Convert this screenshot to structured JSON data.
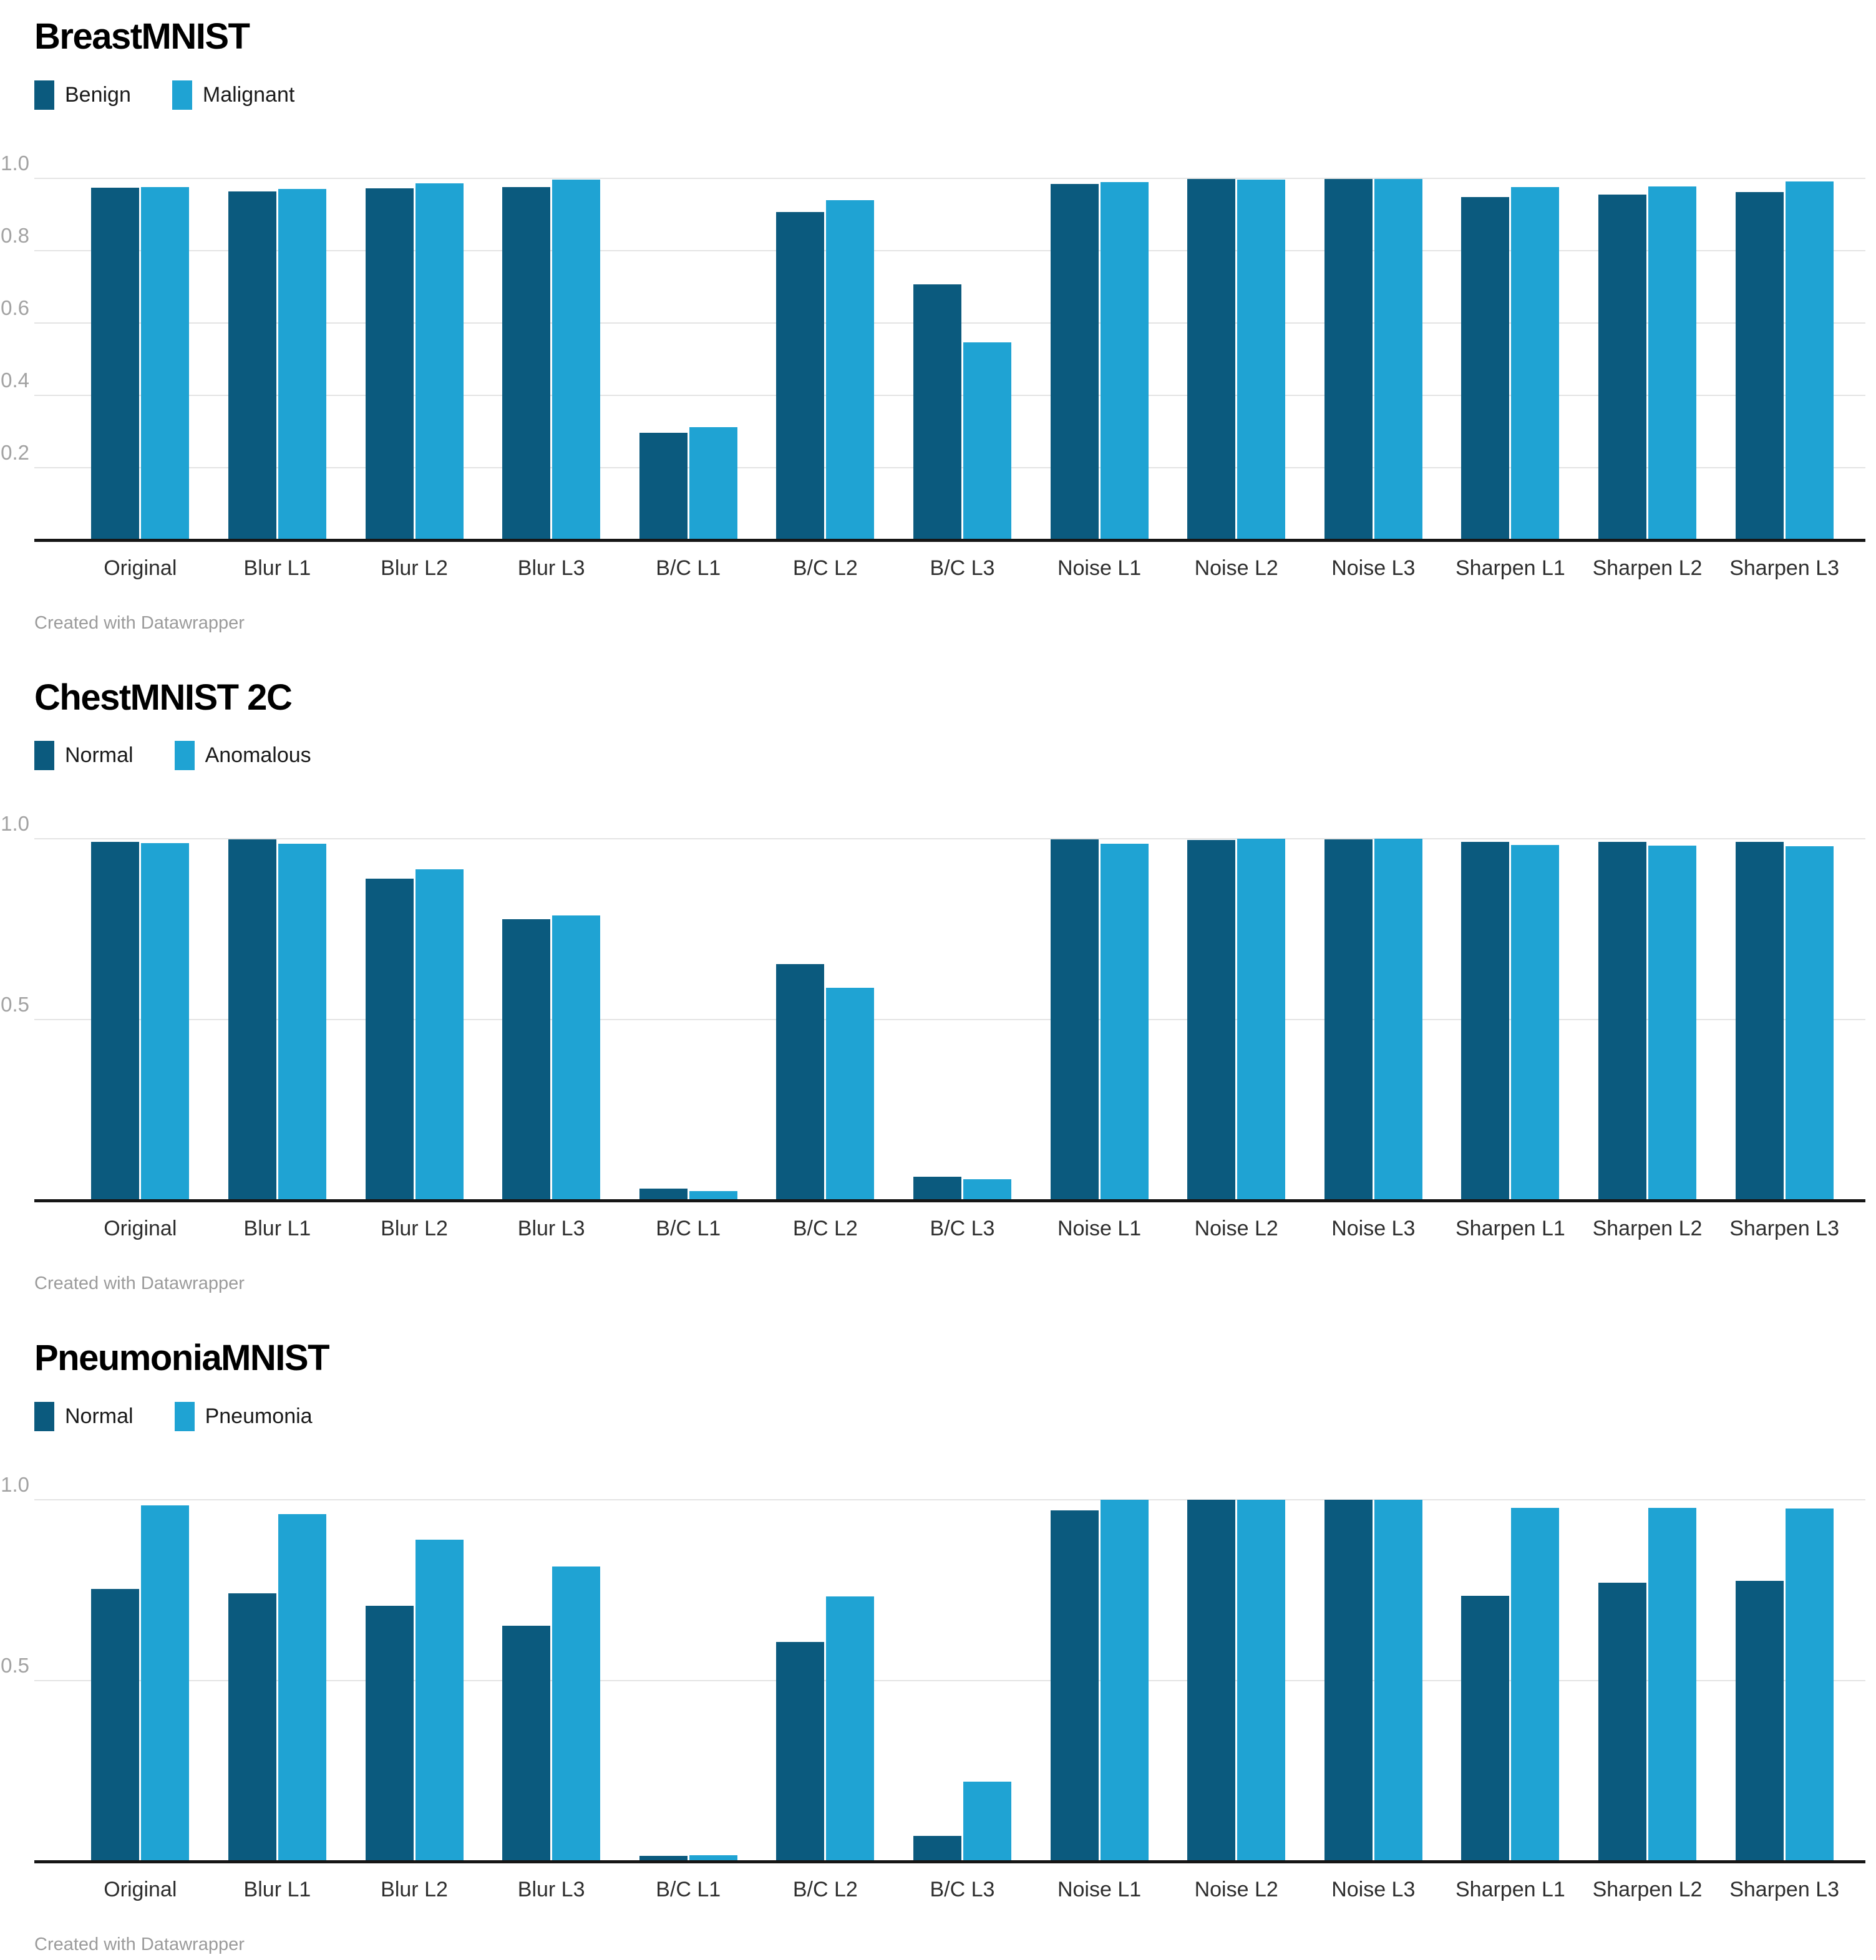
{
  "page": {
    "background": "#ffffff"
  },
  "style_colors": {
    "series_dark": "#0b5a7e",
    "series_light": "#1fa3d3",
    "gridline": "#e4e4e4",
    "baseline": "#161616",
    "tick_label": "#a2a2a2",
    "category_label": "#2e2e2e",
    "legend_label": "#1a1a1a",
    "credit_text": "#9b9b9b"
  },
  "credit": "Created with Datawrapper",
  "chart_data": [
    {
      "type": "bar",
      "title": "BreastMNIST",
      "categories": [
        "Original",
        "Blur L1",
        "Blur L2",
        "Blur L3",
        "B/C L1",
        "B/C L2",
        "B/C L3",
        "Noise L1",
        "Noise L2",
        "Noise L3",
        "Sharpen L1",
        "Sharpen L2",
        "Sharpen L3"
      ],
      "series": [
        {
          "name": "Benign",
          "color": "#0b5a7e",
          "values": [
            0.974,
            0.963,
            0.972,
            0.975,
            0.296,
            0.907,
            0.707,
            0.984,
            0.998,
            0.999,
            0.949,
            0.956,
            0.962
          ]
        },
        {
          "name": "Malignant",
          "color": "#1fa3d3",
          "values": [
            0.975,
            0.97,
            0.987,
            0.997,
            0.312,
            0.939,
            0.547,
            0.989,
            0.997,
            0.999,
            0.976,
            0.978,
            0.991
          ]
        }
      ],
      "xlabel": "",
      "ylabel": "",
      "ylim": [
        0,
        1.0
      ],
      "yticks": [
        0.2,
        0.4,
        0.6,
        0.8,
        1.0
      ],
      "ytick_labels": [
        "0.2",
        "0.4",
        "0.6",
        "0.8",
        "1.0"
      ],
      "grid": "horizontal",
      "legend_position": "top-left",
      "footer": "Created with Datawrapper"
    },
    {
      "type": "bar",
      "title": "ChestMNIST 2C",
      "categories": [
        "Original",
        "Blur L1",
        "Blur L2",
        "Blur L3",
        "B/C L1",
        "B/C L2",
        "B/C L3",
        "Noise L1",
        "Noise L2",
        "Noise L3",
        "Sharpen L1",
        "Sharpen L2",
        "Sharpen L3"
      ],
      "series": [
        {
          "name": "Normal",
          "color": "#0b5a7e",
          "values": [
            0.992,
            0.998,
            0.889,
            0.777,
            0.033,
            0.653,
            0.065,
            0.998,
            0.996,
            0.999,
            0.992,
            0.992,
            0.992
          ]
        },
        {
          "name": "Anomalous",
          "color": "#1fa3d3",
          "values": [
            0.988,
            0.986,
            0.916,
            0.788,
            0.025,
            0.588,
            0.058,
            0.987,
            1.0,
            1.0,
            0.983,
            0.981,
            0.979
          ]
        }
      ],
      "xlabel": "",
      "ylabel": "",
      "ylim": [
        0,
        1.0
      ],
      "yticks": [
        0.5,
        1.0
      ],
      "ytick_labels": [
        "0.5",
        "1.0"
      ],
      "grid": "horizontal",
      "legend_position": "top-left",
      "footer": "Created with Datawrapper"
    },
    {
      "type": "bar",
      "title": "PneumoniaMNIST",
      "categories": [
        "Original",
        "Blur L1",
        "Blur L2",
        "Blur L3",
        "B/C L1",
        "B/C L2",
        "B/C L3",
        "Noise L1",
        "Noise L2",
        "Noise L3",
        "Sharpen L1",
        "Sharpen L2",
        "Sharpen L3"
      ],
      "series": [
        {
          "name": "Normal",
          "color": "#0b5a7e",
          "values": [
            0.753,
            0.741,
            0.707,
            0.651,
            0.016,
            0.607,
            0.07,
            0.971,
            1.0,
            1.0,
            0.735,
            0.771,
            0.776
          ]
        },
        {
          "name": "Pneumonia",
          "color": "#1fa3d3",
          "values": [
            0.984,
            0.961,
            0.89,
            0.816,
            0.018,
            0.733,
            0.22,
            1.0,
            1.0,
            1.0,
            0.977,
            0.978,
            0.975
          ]
        }
      ],
      "xlabel": "",
      "ylabel": "",
      "ylim": [
        0,
        1.0
      ],
      "yticks": [
        0.5,
        1.0
      ],
      "ytick_labels": [
        "0.5",
        "1.0"
      ],
      "grid": "horizontal",
      "legend_position": "top-left",
      "footer": "Created with Datawrapper"
    }
  ]
}
